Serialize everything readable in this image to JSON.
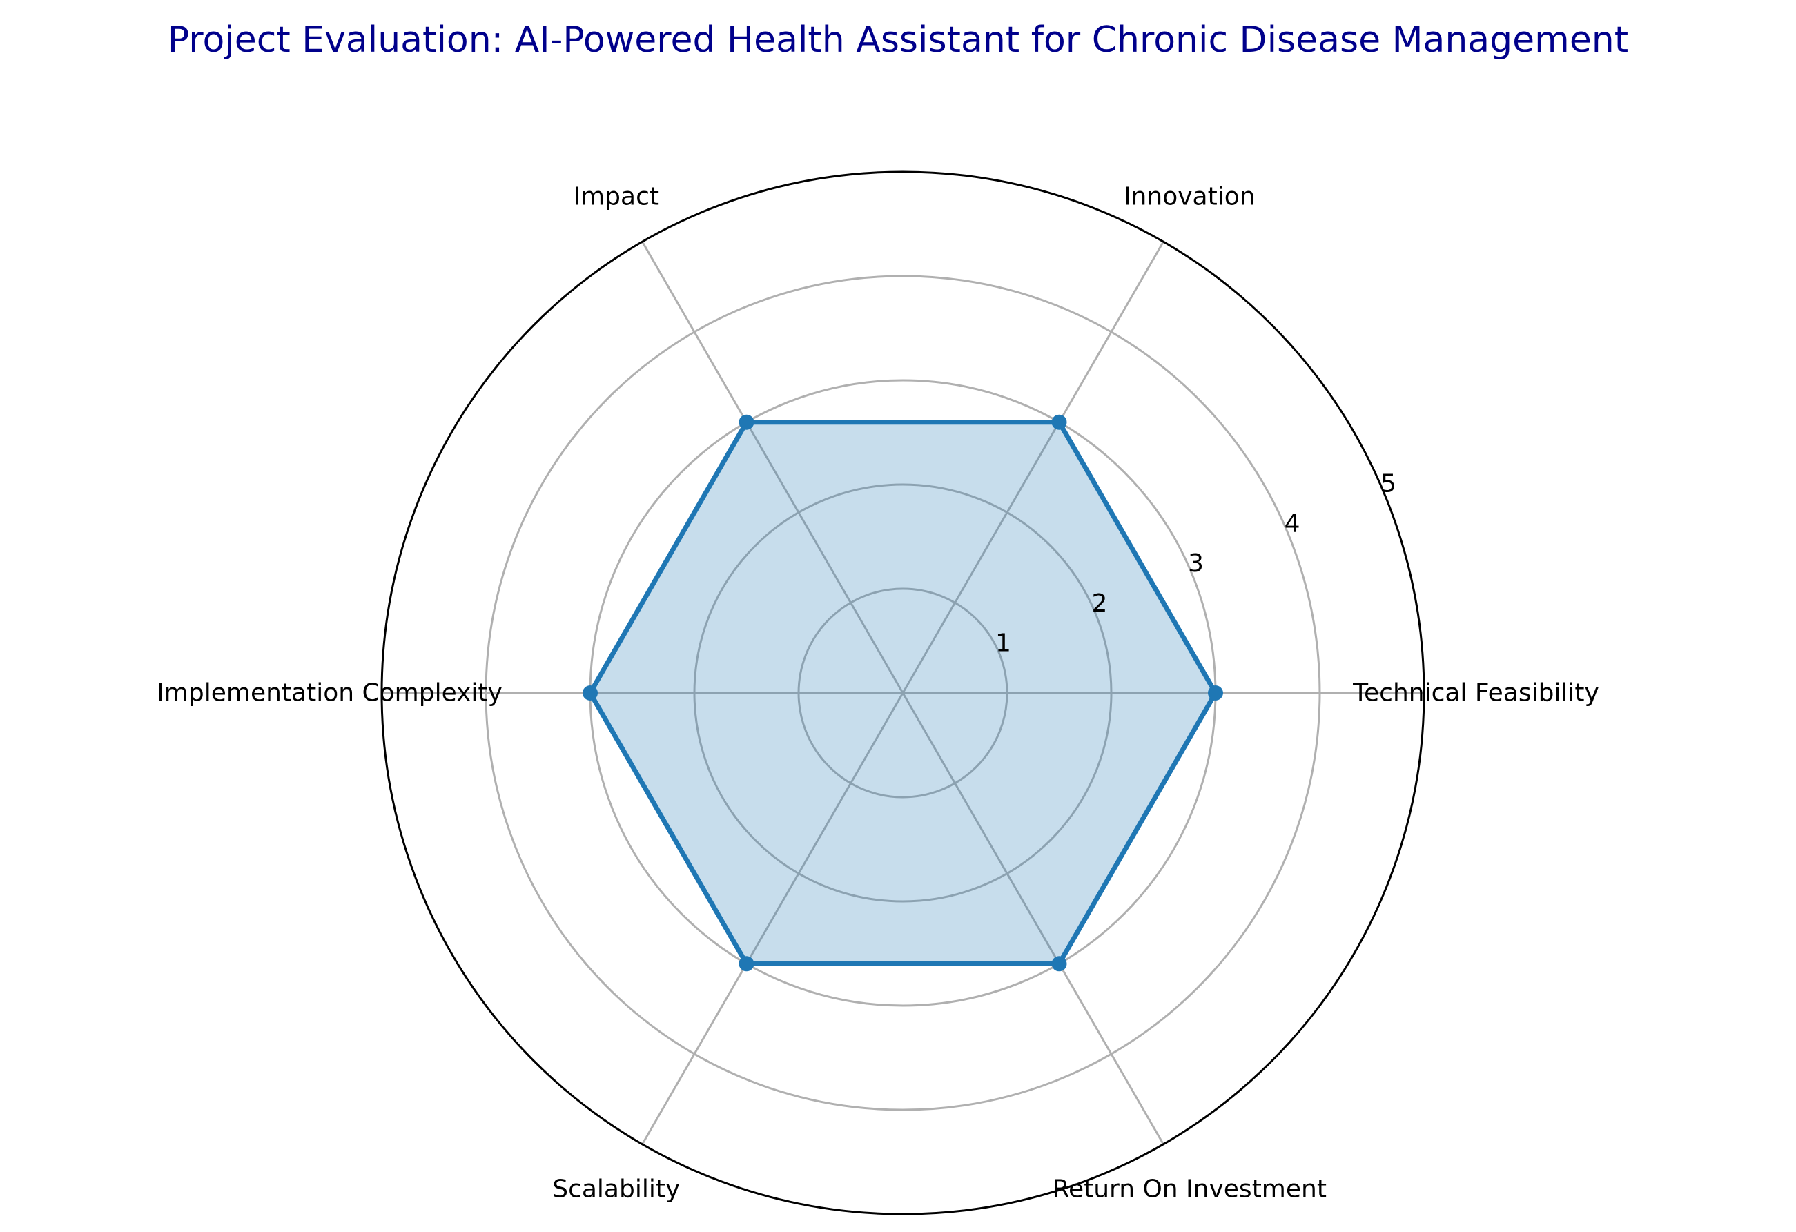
{
  "title": "Project Evaluation: AI-Powered Health Assistant for Chronic Disease Management",
  "colors": {
    "title": "#00008b",
    "series_line": "#1f77b4",
    "series_fill": "#1f77b4",
    "grid": "#b0b0b0",
    "frame": "#000000"
  },
  "chart_data": {
    "type": "radar",
    "categories": [
      "Technical Feasibility",
      "Innovation",
      "Impact",
      "Implementation Complexity",
      "Scalability",
      "Return On Investment"
    ],
    "series": [
      {
        "values": [
          3,
          3,
          3,
          3,
          3,
          3
        ]
      }
    ],
    "rlim": [
      0,
      5
    ],
    "r_ticks": [
      1,
      2,
      3,
      4,
      5
    ],
    "r_tick_labels": [
      "1",
      "2",
      "3",
      "4",
      "5"
    ],
    "grid": true,
    "legend": false
  }
}
